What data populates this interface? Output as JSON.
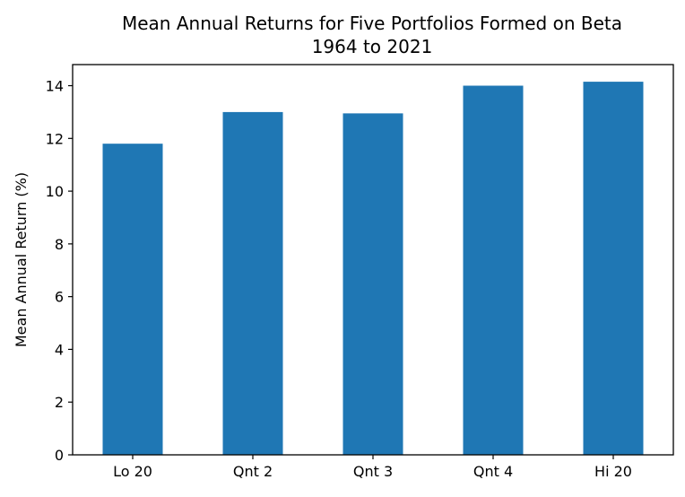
{
  "chart_data": {
    "type": "bar",
    "title": "Mean Annual Returns for Five Portfolios Formed on Beta",
    "subtitle": "1964 to 2021",
    "xlabel": "",
    "ylabel": "Mean Annual Return (%)",
    "categories": [
      "Lo 20",
      "Qnt 2",
      "Qnt 3",
      "Qnt 4",
      "Hi 20"
    ],
    "values": [
      11.8,
      13.0,
      12.95,
      14.0,
      14.15
    ],
    "ylim": [
      0,
      14.8
    ],
    "yticks": [
      "0",
      "2",
      "4",
      "6",
      "8",
      "10",
      "12",
      "14"
    ],
    "grid": false,
    "legend": "none",
    "bar_color": "#1f77b4"
  }
}
